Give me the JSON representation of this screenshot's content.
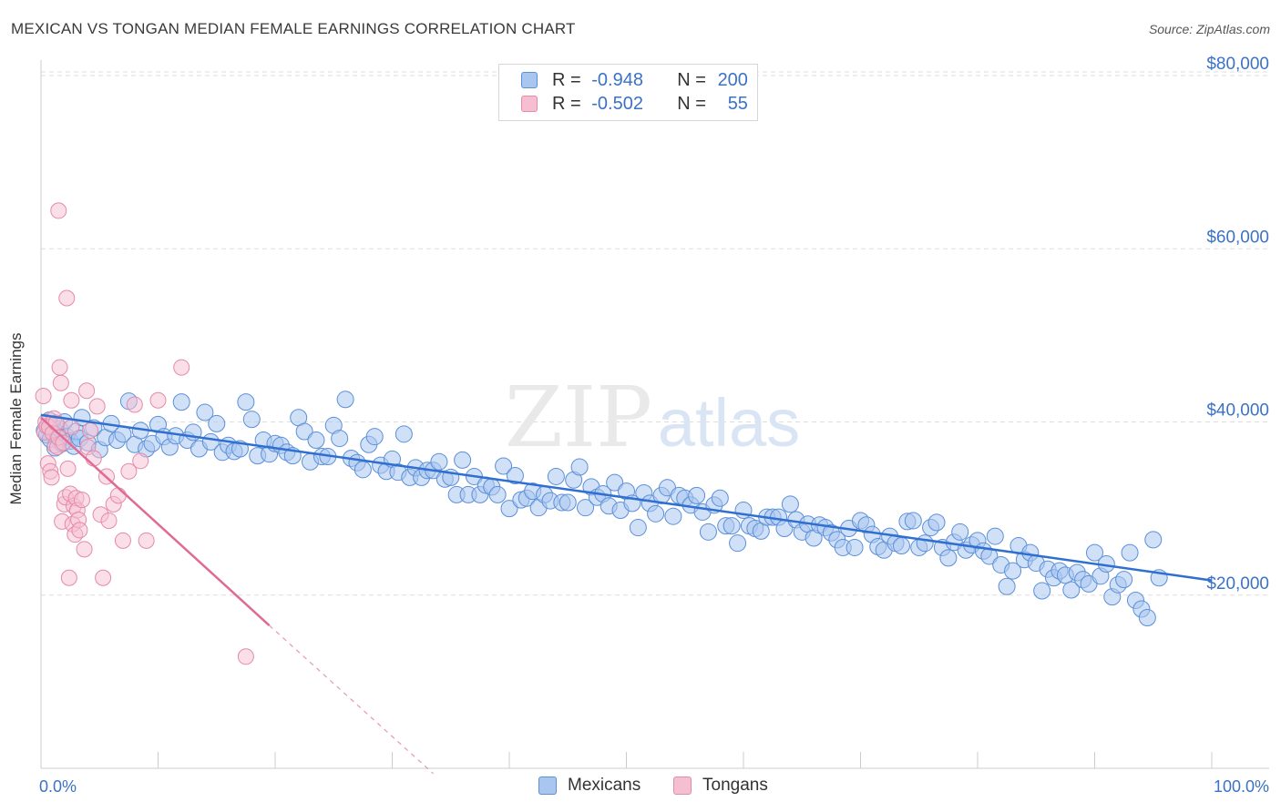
{
  "title": "MEXICAN VS TONGAN MEDIAN FEMALE EARNINGS CORRELATION CHART",
  "source": "Source: ZipAtlas.com",
  "watermark": {
    "zip": "ZIP",
    "atlas": "atlas"
  },
  "colors": {
    "blue": "#5b8fd9",
    "blue_fill": "#a9c6f0",
    "blue_line": "#2f6fd0",
    "pink": "#e58aa8",
    "pink_fill": "#f6bfd1",
    "pink_line": "#e06a94",
    "axis_text": "#3b72c6",
    "grid": "#dddddd"
  },
  "legend_top": {
    "rows": [
      {
        "r_label": "R =",
        "r_value": "-0.948",
        "n_label": "N =",
        "n_value": "200"
      },
      {
        "r_label": "R =",
        "r_value": "-0.502",
        "n_label": "N =",
        "n_value": "55"
      }
    ]
  },
  "legend_bottom": {
    "mexicans": "Mexicans",
    "tongans": "Tongans"
  },
  "chart_data": {
    "type": "scatter",
    "title": "MEXICAN VS TONGAN MEDIAN FEMALE EARNINGS CORRELATION CHART",
    "xlabel": "",
    "ylabel": "Median Female Earnings",
    "xlim": [
      0,
      100
    ],
    "ylim": [
      0,
      82000
    ],
    "x_tick_labels": [
      "0.0%",
      "100.0%"
    ],
    "y_ticks": [
      20000,
      40000,
      60000,
      80000
    ],
    "y_tick_labels": [
      "$20,000",
      "$40,000",
      "$60,000",
      "$80,000"
    ],
    "grid": true,
    "legend_position": "top-center",
    "series": [
      {
        "name": "Mexicans",
        "color": "#5b8fd9",
        "r": -0.948,
        "n": 200,
        "trend": {
          "x": [
            0,
            100
          ],
          "y": [
            40800,
            21700
          ]
        },
        "points": [
          [
            0.3,
            39000
          ],
          [
            0.5,
            38500
          ],
          [
            0.7,
            40200
          ],
          [
            0.8,
            38000
          ],
          [
            1.0,
            39500
          ],
          [
            1.2,
            37000
          ],
          [
            1.4,
            38700
          ],
          [
            1.6,
            39200
          ],
          [
            1.8,
            37500
          ],
          [
            2.0,
            40000
          ],
          [
            2.2,
            38300
          ],
          [
            2.5,
            37800
          ],
          [
            2.8,
            37200
          ],
          [
            3.0,
            38900
          ],
          [
            3.3,
            38100
          ],
          [
            3.5,
            40500
          ],
          [
            4.0,
            37600
          ],
          [
            4.5,
            39300
          ],
          [
            5.0,
            36800
          ],
          [
            5.5,
            38200
          ],
          [
            6.0,
            39800
          ],
          [
            6.5,
            37900
          ],
          [
            7.0,
            38600
          ],
          [
            7.5,
            42400
          ],
          [
            8.0,
            37400
          ],
          [
            8.5,
            39000
          ],
          [
            9.0,
            36900
          ],
          [
            9.5,
            37500
          ],
          [
            10.0,
            39700
          ],
          [
            10.5,
            38300
          ],
          [
            11.0,
            37100
          ],
          [
            11.5,
            38400
          ],
          [
            12.0,
            42300
          ],
          [
            12.5,
            37900
          ],
          [
            13.0,
            38800
          ],
          [
            13.5,
            36900
          ],
          [
            14.0,
            41100
          ],
          [
            14.5,
            37700
          ],
          [
            15.0,
            39800
          ],
          [
            15.5,
            36500
          ],
          [
            16.0,
            37300
          ],
          [
            16.5,
            36600
          ],
          [
            17.0,
            36900
          ],
          [
            17.5,
            42300
          ],
          [
            18.0,
            40300
          ],
          [
            18.5,
            36100
          ],
          [
            19.0,
            37900
          ],
          [
            19.5,
            36300
          ],
          [
            20.0,
            37500
          ],
          [
            20.5,
            37300
          ],
          [
            21.0,
            36500
          ],
          [
            21.5,
            36100
          ],
          [
            22.0,
            40500
          ],
          [
            22.5,
            38900
          ],
          [
            23.0,
            35400
          ],
          [
            23.5,
            37900
          ],
          [
            24.0,
            36000
          ],
          [
            24.5,
            36000
          ],
          [
            25.0,
            39600
          ],
          [
            25.5,
            38100
          ],
          [
            26.0,
            42600
          ],
          [
            26.5,
            35800
          ],
          [
            27.0,
            35300
          ],
          [
            27.5,
            34500
          ],
          [
            28.0,
            37400
          ],
          [
            28.5,
            38300
          ],
          [
            29.0,
            35000
          ],
          [
            29.5,
            34300
          ],
          [
            30.0,
            35700
          ],
          [
            30.5,
            34200
          ],
          [
            31.0,
            38600
          ],
          [
            31.5,
            33600
          ],
          [
            32.0,
            34700
          ],
          [
            32.5,
            33600
          ],
          [
            33.0,
            34400
          ],
          [
            33.5,
            34400
          ],
          [
            34.0,
            35400
          ],
          [
            34.5,
            33400
          ],
          [
            35.0,
            33600
          ],
          [
            35.5,
            31600
          ],
          [
            36.0,
            35600
          ],
          [
            36.5,
            31600
          ],
          [
            37.0,
            33700
          ],
          [
            37.5,
            31600
          ],
          [
            38.0,
            32700
          ],
          [
            38.5,
            32500
          ],
          [
            39.0,
            31600
          ],
          [
            39.5,
            34900
          ],
          [
            40.0,
            30000
          ],
          [
            40.5,
            33800
          ],
          [
            41.0,
            31000
          ],
          [
            41.5,
            31200
          ],
          [
            42.0,
            32000
          ],
          [
            42.5,
            30100
          ],
          [
            43.0,
            31600
          ],
          [
            43.5,
            30900
          ],
          [
            44.0,
            33700
          ],
          [
            44.5,
            30700
          ],
          [
            45.0,
            30700
          ],
          [
            45.5,
            33300
          ],
          [
            46.0,
            34800
          ],
          [
            46.5,
            30100
          ],
          [
            47.0,
            32500
          ],
          [
            47.5,
            31300
          ],
          [
            48.0,
            31700
          ],
          [
            48.5,
            30300
          ],
          [
            49.0,
            33000
          ],
          [
            49.5,
            29800
          ],
          [
            50.0,
            32000
          ],
          [
            50.5,
            30600
          ],
          [
            51.0,
            27800
          ],
          [
            51.5,
            31800
          ],
          [
            52.0,
            30600
          ],
          [
            52.5,
            29400
          ],
          [
            53.0,
            31500
          ],
          [
            53.5,
            32400
          ],
          [
            54.0,
            29100
          ],
          [
            54.5,
            31500
          ],
          [
            55.0,
            31200
          ],
          [
            55.5,
            30400
          ],
          [
            56.0,
            31500
          ],
          [
            56.5,
            29600
          ],
          [
            57.0,
            27300
          ],
          [
            57.5,
            30400
          ],
          [
            58.0,
            31200
          ],
          [
            58.5,
            28000
          ],
          [
            59.0,
            28000
          ],
          [
            59.5,
            26000
          ],
          [
            60.0,
            29800
          ],
          [
            60.5,
            28000
          ],
          [
            61.0,
            27700
          ],
          [
            61.5,
            27400
          ],
          [
            62.0,
            29000
          ],
          [
            62.5,
            29000
          ],
          [
            63.0,
            29000
          ],
          [
            63.5,
            27700
          ],
          [
            64.0,
            30500
          ],
          [
            64.5,
            28700
          ],
          [
            65.0,
            27300
          ],
          [
            65.5,
            28200
          ],
          [
            66.0,
            26600
          ],
          [
            66.5,
            28100
          ],
          [
            67.0,
            27800
          ],
          [
            67.5,
            27200
          ],
          [
            68.0,
            26400
          ],
          [
            68.5,
            25500
          ],
          [
            69.0,
            27700
          ],
          [
            69.5,
            25500
          ],
          [
            70.0,
            28600
          ],
          [
            70.5,
            28100
          ],
          [
            71.0,
            27000
          ],
          [
            71.5,
            25600
          ],
          [
            72.0,
            25200
          ],
          [
            72.5,
            26800
          ],
          [
            73.0,
            26000
          ],
          [
            73.5,
            25700
          ],
          [
            74.0,
            28500
          ],
          [
            74.5,
            28600
          ],
          [
            75.0,
            25500
          ],
          [
            75.5,
            26000
          ],
          [
            76.0,
            27800
          ],
          [
            76.5,
            28400
          ],
          [
            77.0,
            25500
          ],
          [
            77.5,
            24300
          ],
          [
            78.0,
            26100
          ],
          [
            78.5,
            27300
          ],
          [
            79.0,
            25200
          ],
          [
            79.5,
            25800
          ],
          [
            80.0,
            26300
          ],
          [
            80.5,
            25100
          ],
          [
            81.0,
            24500
          ],
          [
            81.5,
            26800
          ],
          [
            82.0,
            23500
          ],
          [
            82.5,
            21000
          ],
          [
            83.0,
            22800
          ],
          [
            83.5,
            25700
          ],
          [
            84.0,
            24100
          ],
          [
            84.5,
            24900
          ],
          [
            85.0,
            23700
          ],
          [
            85.5,
            20500
          ],
          [
            86.0,
            23000
          ],
          [
            86.5,
            22000
          ],
          [
            87.0,
            22800
          ],
          [
            87.5,
            22300
          ],
          [
            88.0,
            20600
          ],
          [
            88.5,
            22600
          ],
          [
            89.0,
            21800
          ],
          [
            89.5,
            21300
          ],
          [
            90.0,
            24900
          ],
          [
            90.5,
            22200
          ],
          [
            91.0,
            23600
          ],
          [
            91.5,
            19800
          ],
          [
            92.0,
            21200
          ],
          [
            92.5,
            21800
          ],
          [
            93.0,
            24900
          ],
          [
            93.5,
            19400
          ],
          [
            94.0,
            18400
          ],
          [
            94.5,
            17400
          ],
          [
            95.0,
            26400
          ],
          [
            95.5,
            22000
          ]
        ]
      },
      {
        "name": "Tongans",
        "color": "#e58aa8",
        "r": -0.502,
        "n": 55,
        "trend": {
          "x": [
            0,
            19.5
          ],
          "y": [
            40500,
            16500
          ]
        },
        "trend_dashed": {
          "x": [
            19.5,
            33.5
          ],
          "y": [
            16500,
            -600
          ]
        },
        "points": [
          [
            0.2,
            43000
          ],
          [
            0.3,
            38800
          ],
          [
            0.4,
            40000
          ],
          [
            0.5,
            39500
          ],
          [
            0.6,
            35200
          ],
          [
            0.7,
            39400
          ],
          [
            0.8,
            34300
          ],
          [
            0.9,
            33600
          ],
          [
            1.0,
            38700
          ],
          [
            1.1,
            40400
          ],
          [
            1.2,
            37300
          ],
          [
            1.3,
            39900
          ],
          [
            1.4,
            37100
          ],
          [
            1.5,
            38200
          ],
          [
            1.6,
            46300
          ],
          [
            1.7,
            44500
          ],
          [
            1.8,
            28500
          ],
          [
            1.9,
            37600
          ],
          [
            2.0,
            30500
          ],
          [
            2.1,
            31300
          ],
          [
            2.2,
            54300
          ],
          [
            2.3,
            34600
          ],
          [
            2.4,
            22000
          ],
          [
            2.5,
            31700
          ],
          [
            2.6,
            42500
          ],
          [
            2.7,
            28200
          ],
          [
            2.8,
            30300
          ],
          [
            2.9,
            27000
          ],
          [
            3.0,
            31200
          ],
          [
            3.1,
            29800
          ],
          [
            3.2,
            28700
          ],
          [
            3.3,
            27500
          ],
          [
            3.5,
            31000
          ],
          [
            3.7,
            25300
          ],
          [
            3.9,
            43600
          ],
          [
            4.0,
            37100
          ],
          [
            4.2,
            39000
          ],
          [
            4.5,
            35800
          ],
          [
            4.8,
            41800
          ],
          [
            5.1,
            29300
          ],
          [
            5.3,
            22000
          ],
          [
            5.6,
            33700
          ],
          [
            5.8,
            28600
          ],
          [
            6.2,
            30500
          ],
          [
            6.6,
            31500
          ],
          [
            7.0,
            26300
          ],
          [
            7.5,
            34300
          ],
          [
            8.0,
            42000
          ],
          [
            8.5,
            35500
          ],
          [
            9.0,
            26300
          ],
          [
            10.0,
            42500
          ],
          [
            12.0,
            46300
          ],
          [
            17.5,
            12900
          ],
          [
            1.5,
            64400
          ],
          [
            2.6,
            39400
          ]
        ]
      }
    ]
  }
}
